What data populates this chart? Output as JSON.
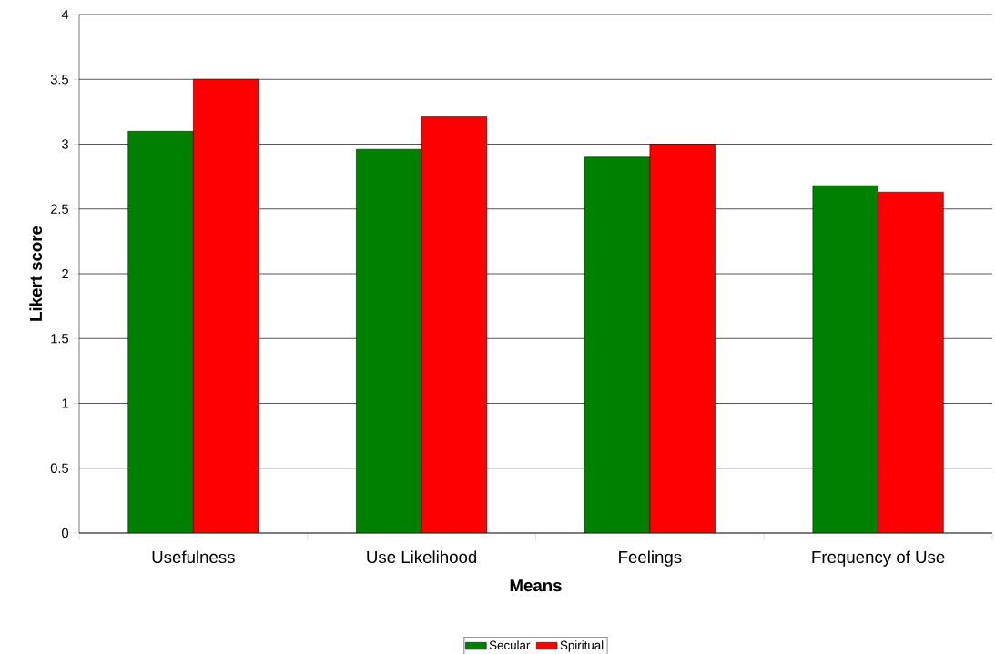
{
  "chart_data": {
    "type": "bar",
    "categories": [
      "Usefulness",
      "Use Likelihood",
      "Feelings",
      "Frequency of Use"
    ],
    "series": [
      {
        "name": "Secular",
        "color": "#008000",
        "values": [
          3.1,
          2.96,
          2.9,
          2.68
        ]
      },
      {
        "name": "Spiritual",
        "color": "#ff0000",
        "values": [
          3.5,
          3.21,
          3.0,
          2.63
        ]
      }
    ],
    "xlabel": "Means",
    "ylabel": "Likert score",
    "ylim": [
      0,
      4
    ],
    "yticks": [
      0,
      0.5,
      1,
      1.5,
      2,
      2.5,
      3,
      3.5,
      4
    ],
    "grid": "y",
    "legend": "bottom"
  }
}
